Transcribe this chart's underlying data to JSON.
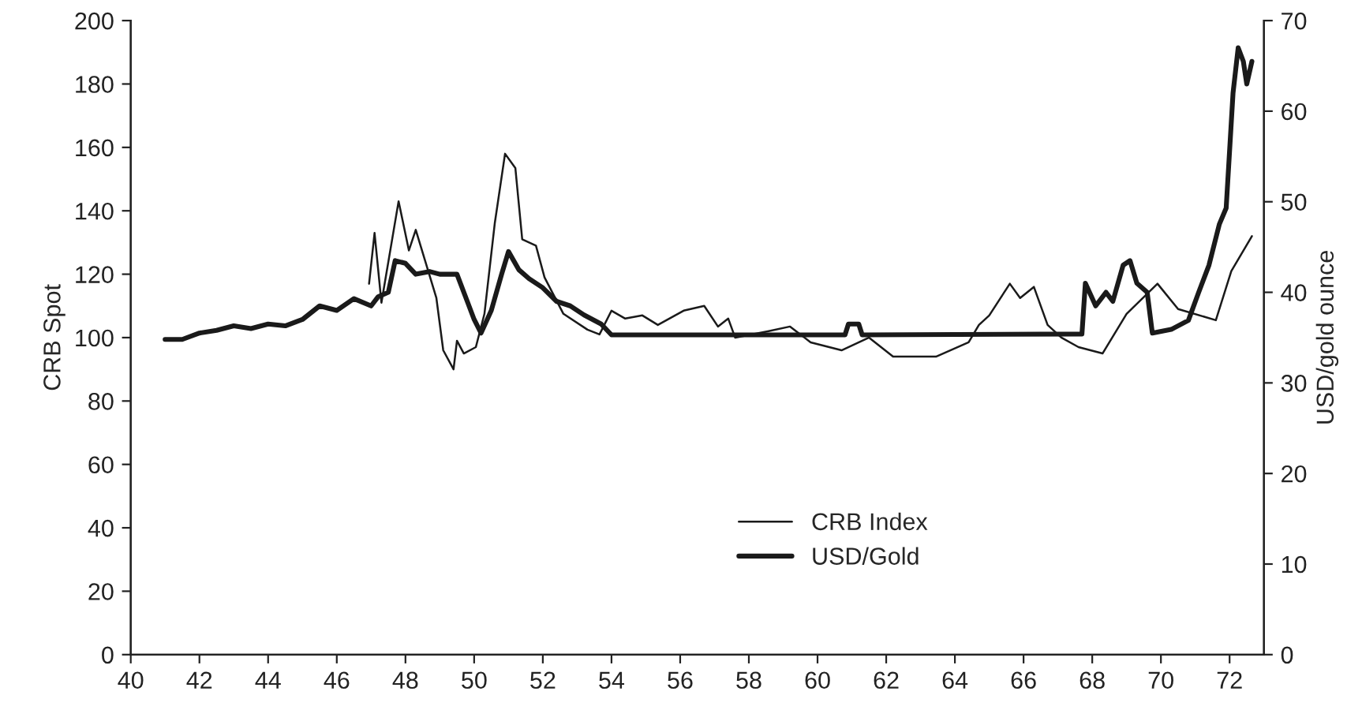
{
  "chart_data": {
    "type": "line",
    "ylabel": "CRB Spot",
    "y2label": "USD/gold ounce",
    "xlim": [
      40,
      73
    ],
    "xticks": [
      40,
      42,
      44,
      46,
      48,
      50,
      52,
      54,
      56,
      58,
      60,
      62,
      64,
      66,
      68,
      70,
      72
    ],
    "ylim": [
      0,
      200
    ],
    "yticks": [
      0,
      20,
      40,
      60,
      80,
      100,
      120,
      140,
      160,
      180,
      200
    ],
    "y2lim": [
      0,
      70
    ],
    "y2ticks": [
      0,
      10,
      20,
      30,
      40,
      50,
      60,
      70
    ],
    "grid": false,
    "legend": "bottom",
    "marker": "none",
    "line_style": "solid",
    "series": [
      {
        "name": "CRB Index",
        "color": "#1a1a1a",
        "x": [
          46.94,
          47.1,
          47.3,
          47.8,
          48.1,
          48.3,
          48.9,
          49.1,
          49.4,
          49.5,
          49.7,
          50.05,
          50.3,
          50.6,
          50.9,
          51.2,
          51.4,
          51.8,
          52.05,
          52.6,
          53.3,
          53.65,
          54.0,
          54.4,
          54.9,
          55.35,
          56.1,
          56.7,
          57.1,
          57.4,
          57.6,
          58.55,
          59.2,
          59.8,
          60.7,
          61.5,
          62.2,
          63.45,
          64.4,
          64.7,
          65.0,
          65.6,
          65.9,
          66.3,
          66.7,
          67.1,
          67.6,
          68.3,
          69.0,
          69.9,
          70.5,
          71.6,
          72.05,
          72.65
        ],
        "values": [
          117,
          133,
          111,
          143,
          127.5,
          134,
          112.5,
          96,
          90,
          99,
          95,
          97,
          107.5,
          136,
          158,
          153.5,
          131,
          129,
          119,
          107.5,
          102.5,
          101,
          108.5,
          106,
          107,
          104,
          108.5,
          110,
          103.5,
          106,
          100,
          102,
          103.5,
          98.5,
          96,
          100,
          94,
          94,
          98.5,
          104,
          107,
          117,
          112.5,
          116,
          104,
          100,
          97,
          95,
          107.5,
          117,
          109,
          105.5,
          121,
          132
        ]
      },
      {
        "name": "USD/Gold",
        "color": "#1a1a1a",
        "axis": "y2",
        "x": [
          41,
          41.5,
          42,
          42.5,
          43,
          43.5,
          44,
          44.5,
          45,
          45.5,
          46,
          46.5,
          47,
          47.2,
          47.5,
          47.7,
          48,
          48.3,
          48.7,
          49,
          49.5,
          49.8,
          50,
          50.2,
          50.5,
          50.8,
          51,
          51.3,
          51.6,
          52,
          52.4,
          52.8,
          53.2,
          53.7,
          54,
          60.8,
          60.9,
          61.2,
          61.3,
          67.7,
          67.8,
          68.1,
          68.4,
          68.6,
          68.9,
          69.1,
          69.3,
          69.6,
          69.75,
          70.3,
          70.8,
          71.1,
          71.4,
          71.7,
          71.9,
          72.1,
          72.25,
          72.4,
          72.5,
          72.65
        ],
        "values": [
          34.8,
          34.8,
          35.5,
          35.8,
          36.3,
          36,
          36.5,
          36.3,
          37,
          38.5,
          38,
          39.3,
          38.5,
          39.5,
          40,
          43.5,
          43.2,
          42,
          42.3,
          42,
          42,
          39,
          37,
          35.5,
          38,
          42,
          44.5,
          42.5,
          41.5,
          40.5,
          39,
          38.5,
          37.5,
          36.5,
          35.3,
          35.3,
          36.5,
          36.5,
          35.3,
          35.4,
          41,
          38.5,
          40,
          39,
          43,
          43.5,
          41,
          40,
          35.5,
          35.9,
          36.9,
          40,
          43,
          47.5,
          49.3,
          62,
          67,
          65.5,
          63,
          65.5
        ]
      }
    ]
  }
}
